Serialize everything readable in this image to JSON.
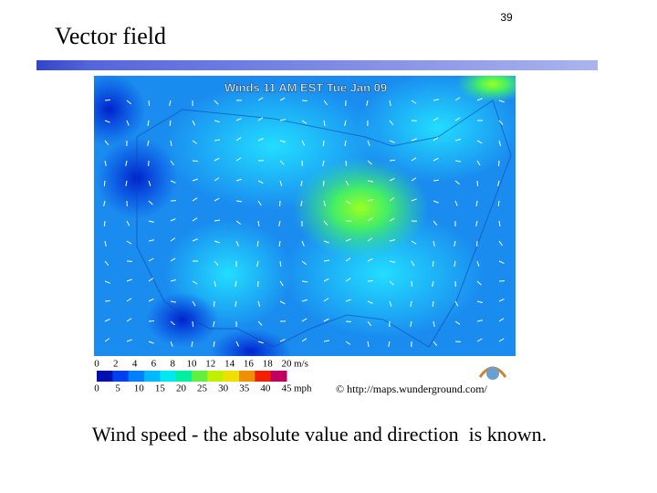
{
  "header": {
    "title": "Vector field",
    "page_number": "39"
  },
  "map": {
    "title": "Winds 11 AM EST Tue Jan 09",
    "legend": {
      "ms_values": [
        0,
        2,
        4,
        6,
        8,
        10,
        12,
        14,
        16,
        18,
        20
      ],
      "ms_unit": "m/s",
      "mph_values": [
        0,
        5,
        10,
        15,
        20,
        25,
        30,
        35,
        40,
        45
      ],
      "mph_unit": "mph"
    },
    "credit": "© http://maps.wunderground.com/"
  },
  "caption": "Wind speed - the absolute value and direction  is known."
}
